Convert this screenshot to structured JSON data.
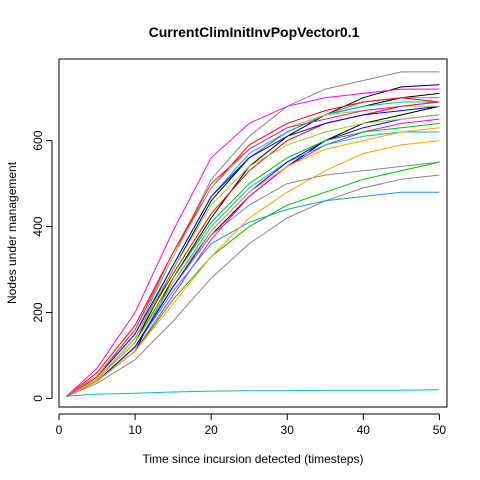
{
  "chart_data": {
    "type": "line",
    "title": "CurrentClimInitInvPopVector0.1",
    "xlabel": "Time since incursion detected (timesteps)",
    "ylabel": "Nodes under management",
    "xlim": [
      0,
      51
    ],
    "ylim": [
      -20,
      790
    ],
    "x_ticks": [
      0,
      10,
      20,
      30,
      40,
      50
    ],
    "y_ticks": [
      0,
      200,
      400,
      600
    ],
    "grid": false,
    "series": [
      {
        "color": "#000000",
        "x": [
          1,
          5,
          10,
          15,
          20,
          25,
          30,
          35,
          40,
          45,
          50
        ],
        "y": [
          5,
          40,
          110,
          280,
          420,
          540,
          610,
          660,
          700,
          725,
          730
        ]
      },
      {
        "color": "#000000",
        "x": [
          1,
          5,
          10,
          15,
          20,
          25,
          30,
          35,
          40,
          45,
          50
        ],
        "y": [
          5,
          45,
          130,
          300,
          460,
          560,
          620,
          660,
          680,
          700,
          710
        ]
      },
      {
        "color": "#000000",
        "x": [
          1,
          5,
          10,
          15,
          20,
          25,
          30,
          35,
          40,
          45,
          50
        ],
        "y": [
          5,
          40,
          120,
          260,
          380,
          470,
          540,
          600,
          640,
          660,
          680
        ]
      },
      {
        "color": "#888888",
        "x": [
          1,
          5,
          10,
          15,
          20,
          25,
          30,
          35,
          40,
          45,
          50
        ],
        "y": [
          5,
          50,
          150,
          330,
          510,
          610,
          680,
          720,
          740,
          760,
          760
        ]
      },
      {
        "color": "#888888",
        "x": [
          1,
          5,
          10,
          15,
          20,
          25,
          30,
          35,
          40,
          45,
          50
        ],
        "y": [
          5,
          40,
          120,
          260,
          380,
          450,
          500,
          520,
          530,
          540,
          550
        ]
      },
      {
        "color": "#888888",
        "x": [
          1,
          5,
          10,
          15,
          20,
          25,
          30,
          35,
          40,
          45,
          50
        ],
        "y": [
          5,
          35,
          90,
          180,
          280,
          360,
          420,
          460,
          490,
          510,
          520
        ]
      },
      {
        "color": "#888888",
        "x": [
          1,
          5,
          10,
          15,
          20,
          25,
          30,
          35,
          40,
          45,
          50
        ],
        "y": [
          5,
          45,
          140,
          310,
          470,
          560,
          620,
          660,
          690,
          700,
          700
        ]
      },
      {
        "color": "#ff0000",
        "x": [
          1,
          5,
          10,
          15,
          20,
          25,
          30,
          35,
          40,
          45,
          50
        ],
        "y": [
          5,
          60,
          170,
          340,
          490,
          590,
          640,
          670,
          690,
          700,
          690
        ]
      },
      {
        "color": "#ff0000",
        "x": [
          1,
          5,
          10,
          15,
          20,
          25,
          30,
          35,
          40,
          45,
          50
        ],
        "y": [
          5,
          45,
          140,
          290,
          430,
          530,
          600,
          640,
          660,
          680,
          690
        ]
      },
      {
        "color": "#ff00ff",
        "x": [
          1,
          5,
          10,
          15,
          20,
          25,
          30,
          35,
          40,
          45,
          50
        ],
        "y": [
          5,
          70,
          200,
          390,
          560,
          640,
          680,
          700,
          710,
          720,
          720
        ]
      },
      {
        "color": "#ff00ff",
        "x": [
          1,
          5,
          10,
          15,
          20,
          25,
          30,
          35,
          40,
          45,
          50
        ],
        "y": [
          5,
          40,
          110,
          240,
          370,
          470,
          540,
          590,
          620,
          640,
          650
        ]
      },
      {
        "color": "#00bcd4",
        "x": [
          1,
          5,
          10,
          15,
          20,
          25,
          30,
          35,
          40,
          45,
          50
        ],
        "y": [
          5,
          10,
          12,
          15,
          17,
          18,
          18,
          19,
          19,
          19,
          20
        ]
      },
      {
        "color": "#00bcd4",
        "x": [
          1,
          5,
          10,
          15,
          20,
          25,
          30,
          35,
          40,
          45,
          50
        ],
        "y": [
          5,
          45,
          140,
          310,
          470,
          570,
          620,
          660,
          680,
          690,
          690
        ]
      },
      {
        "color": "#00bcd4",
        "x": [
          1,
          5,
          10,
          15,
          20,
          25,
          30,
          35,
          40,
          45,
          50
        ],
        "y": [
          5,
          40,
          120,
          270,
          400,
          490,
          550,
          590,
          610,
          620,
          620
        ]
      },
      {
        "color": "#1e90ff",
        "x": [
          1,
          5,
          10,
          15,
          20,
          25,
          30,
          35,
          40,
          45,
          50
        ],
        "y": [
          5,
          40,
          120,
          250,
          360,
          410,
          440,
          460,
          470,
          480,
          480
        ]
      },
      {
        "color": "#0000ff",
        "x": [
          1,
          5,
          10,
          15,
          20,
          25,
          30,
          35,
          40,
          45,
          50
        ],
        "y": [
          5,
          50,
          150,
          310,
          470,
          560,
          610,
          640,
          660,
          670,
          680
        ]
      },
      {
        "color": "#0000ff",
        "x": [
          1,
          5,
          10,
          15,
          20,
          25,
          30,
          35,
          40,
          45,
          50
        ],
        "y": [
          5,
          40,
          120,
          260,
          390,
          480,
          550,
          600,
          630,
          650,
          660
        ]
      },
      {
        "color": "#00c000",
        "x": [
          1,
          5,
          10,
          15,
          20,
          25,
          30,
          35,
          40,
          45,
          50
        ],
        "y": [
          5,
          40,
          110,
          230,
          330,
          400,
          450,
          480,
          510,
          530,
          550
        ]
      },
      {
        "color": "#00c000",
        "x": [
          1,
          5,
          10,
          15,
          20,
          25,
          30,
          35,
          40,
          45,
          50
        ],
        "y": [
          5,
          45,
          130,
          280,
          410,
          500,
          560,
          600,
          620,
          630,
          640
        ]
      },
      {
        "color": "#9acd32",
        "x": [
          1,
          5,
          10,
          15,
          20,
          25,
          30,
          35,
          40,
          45,
          50
        ],
        "y": [
          5,
          55,
          160,
          330,
          490,
          580,
          630,
          660,
          670,
          680,
          680
        ]
      },
      {
        "color": "#9acd32",
        "x": [
          1,
          5,
          10,
          15,
          20,
          25,
          30,
          35,
          40,
          45,
          50
        ],
        "y": [
          5,
          45,
          140,
          300,
          450,
          540,
          590,
          620,
          640,
          650,
          660
        ]
      },
      {
        "color": "#ffa500",
        "x": [
          1,
          5,
          10,
          15,
          20,
          25,
          30,
          35,
          40,
          45,
          50
        ],
        "y": [
          5,
          40,
          110,
          220,
          330,
          420,
          480,
          530,
          570,
          590,
          600
        ]
      },
      {
        "color": "#ffa500",
        "x": [
          1,
          5,
          10,
          15,
          20,
          25,
          30,
          35,
          40,
          45,
          50
        ],
        "y": [
          5,
          45,
          130,
          270,
          390,
          480,
          540,
          580,
          600,
          620,
          630
        ]
      },
      {
        "color": "#ff1493",
        "x": [
          1,
          5,
          10,
          15,
          20,
          25,
          30,
          35,
          40,
          45,
          50
        ],
        "y": [
          5,
          50,
          160,
          340,
          500,
          580,
          630,
          650,
          670,
          680,
          690
        ]
      }
    ]
  }
}
